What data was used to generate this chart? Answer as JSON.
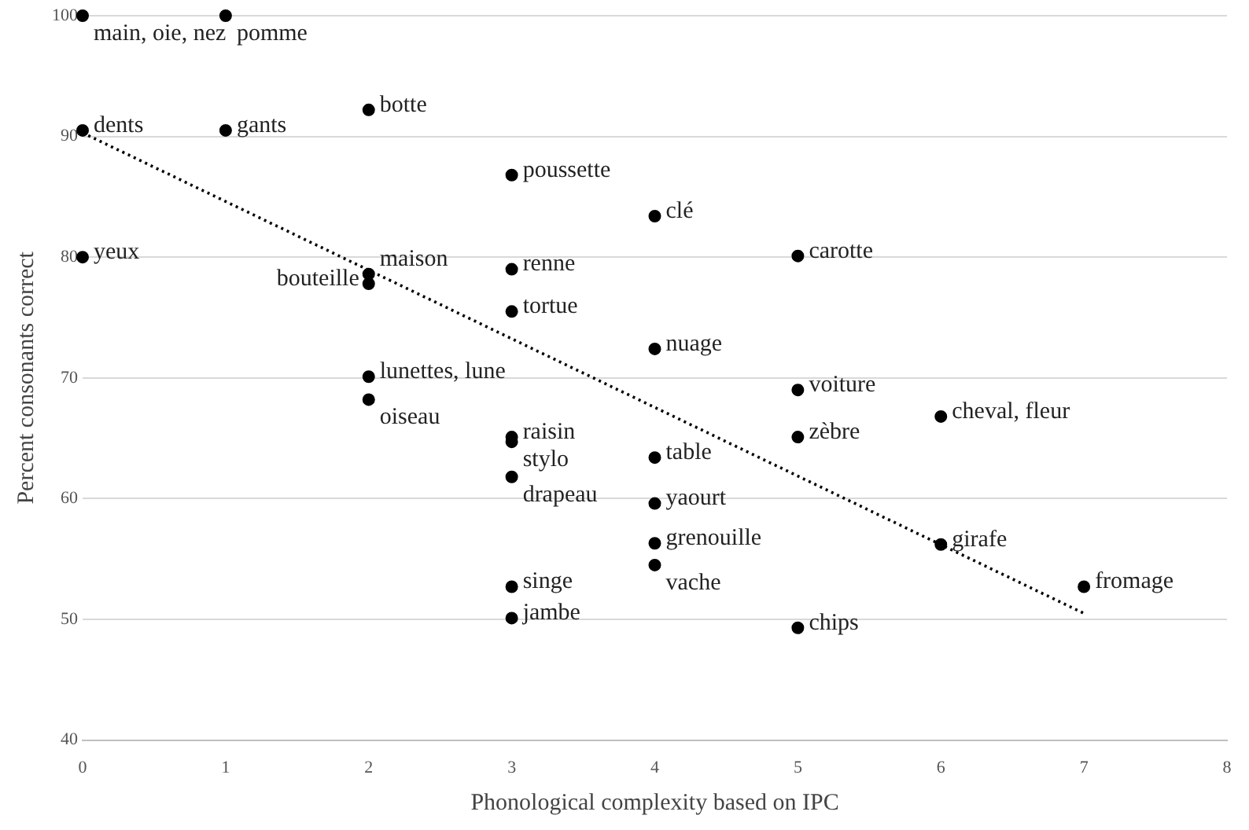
{
  "chart_data": {
    "type": "scatter",
    "xlabel": "Phonological complexity based on IPC",
    "ylabel": "Percent consonants correct",
    "xlim": [
      0,
      8
    ],
    "xticks": [
      0,
      1,
      2,
      3,
      4,
      5,
      6,
      7,
      8
    ],
    "ylim": [
      40,
      100
    ],
    "yticks": [
      40,
      50,
      60,
      70,
      80,
      90,
      100
    ],
    "grid": "y",
    "legend": false,
    "marker": "circle",
    "series": [
      {
        "type": "scatter",
        "color": "#000000",
        "x": [
          0,
          1,
          0,
          1,
          2,
          0,
          3,
          4,
          5,
          2,
          2,
          3,
          3,
          4,
          2,
          5,
          2,
          6,
          3,
          3,
          5,
          4,
          3,
          4,
          4,
          6,
          4,
          3,
          7,
          3,
          5
        ],
        "values": [
          100,
          100,
          90.5,
          90.5,
          92.2,
          80,
          86.8,
          83.4,
          80.1,
          78.6,
          77.8,
          79,
          75.5,
          72.4,
          70.1,
          69,
          68.2,
          66.8,
          65.1,
          64.7,
          65.1,
          63.4,
          61.8,
          59.6,
          56.3,
          56.2,
          54.5,
          52.7,
          52.7,
          50.1,
          49.3
        ]
      },
      {
        "type": "line",
        "color": "#000000",
        "line_style": "dotted",
        "marker": "none",
        "x": [
          0,
          7
        ],
        "values": [
          90.3,
          50.5
        ]
      }
    ],
    "annotations": [
      {
        "text": "main, oie, nez",
        "x": 0,
        "y": 100
      },
      {
        "text": "pomme",
        "x": 1,
        "y": 100
      },
      {
        "text": "dents",
        "x": 0,
        "y": 90.5
      },
      {
        "text": "gants",
        "x": 1,
        "y": 90.5
      },
      {
        "text": "botte",
        "x": 2,
        "y": 92.2
      },
      {
        "text": "yeux",
        "x": 0,
        "y": 80
      },
      {
        "text": "poussette",
        "x": 3,
        "y": 86.8
      },
      {
        "text": "clé",
        "x": 4,
        "y": 83.4
      },
      {
        "text": "carotte",
        "x": 5,
        "y": 80.1
      },
      {
        "text": "maison",
        "x": 2,
        "y": 78.6
      },
      {
        "text": "bouteille",
        "x": 2,
        "y": 77.8
      },
      {
        "text": "renne",
        "x": 3,
        "y": 79
      },
      {
        "text": "tortue",
        "x": 3,
        "y": 75.5
      },
      {
        "text": "nuage",
        "x": 4,
        "y": 72.4
      },
      {
        "text": "lunettes, lune",
        "x": 2,
        "y": 70.1
      },
      {
        "text": "voiture",
        "x": 5,
        "y": 69
      },
      {
        "text": "oiseau",
        "x": 2,
        "y": 68.2
      },
      {
        "text": "cheval, fleur",
        "x": 6,
        "y": 66.8
      },
      {
        "text": "raisin",
        "x": 3,
        "y": 65.1
      },
      {
        "text": "stylo",
        "x": 3,
        "y": 64.7
      },
      {
        "text": "zèbre",
        "x": 5,
        "y": 65.1
      },
      {
        "text": "table",
        "x": 4,
        "y": 63.4
      },
      {
        "text": "drapeau",
        "x": 3,
        "y": 61.8
      },
      {
        "text": "yaourt",
        "x": 4,
        "y": 59.6
      },
      {
        "text": "grenouille",
        "x": 4,
        "y": 56.3
      },
      {
        "text": "girafe",
        "x": 6,
        "y": 56.2
      },
      {
        "text": "vache",
        "x": 4,
        "y": 54.5
      },
      {
        "text": "singe",
        "x": 3,
        "y": 52.7
      },
      {
        "text": "fromage",
        "x": 7,
        "y": 52.7
      },
      {
        "text": "jambe",
        "x": 3,
        "y": 50.1
      },
      {
        "text": "chips",
        "x": 5,
        "y": 49.3
      }
    ]
  }
}
